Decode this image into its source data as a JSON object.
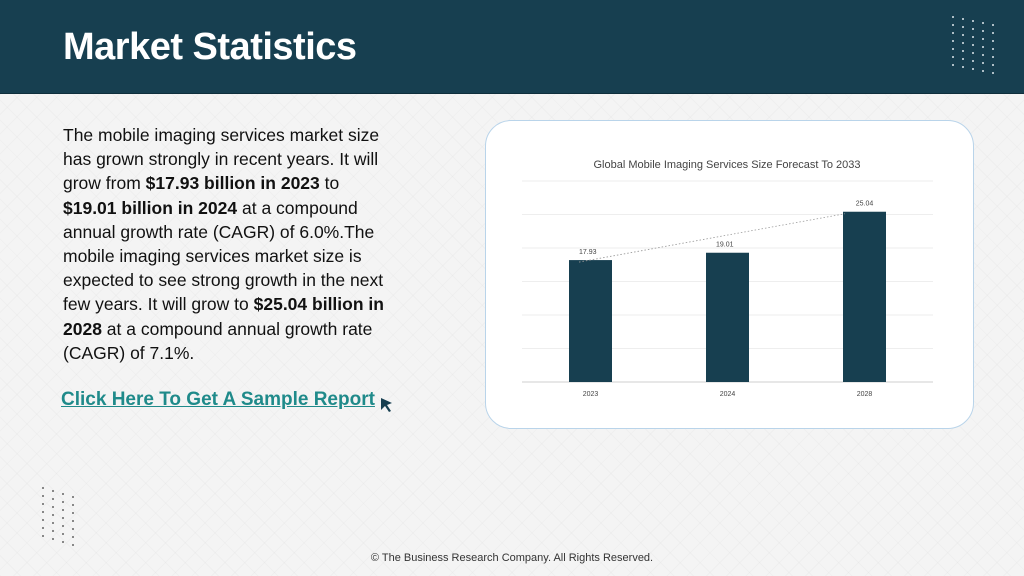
{
  "header": {
    "title": "Market Statistics"
  },
  "body": {
    "p1": "The mobile imaging services market size has grown strongly in recent years. It will grow from ",
    "b1": "$17.93 billion in 2023",
    "p2": " to ",
    "b2": "$19.01 billion in 2024",
    "p3": " at a compound annual growth rate (CAGR) of 6.0%.The mobile imaging services market size is expected to see strong growth in the next few years. It will grow to ",
    "b3": "$25.04 billion in 2028",
    "p4": " at a compound annual growth rate (CAGR) of 7.1%."
  },
  "cta": {
    "label": "Click Here To Get A Sample Report",
    "icon": "cursor-arrow-icon"
  },
  "footer": {
    "text": "© The Business Research Company. All Rights Reserved."
  },
  "colors": {
    "header_bg": "#173f50",
    "bar": "#173f50",
    "link": "#1f8a8a"
  },
  "chart_data": {
    "type": "bar",
    "title": "Global Mobile Imaging Services Size Forecast To 2033",
    "categories": [
      "2023",
      "2024",
      "2028"
    ],
    "values": [
      17.93,
      19.01,
      25.04
    ],
    "data_labels": [
      "17.93",
      "19.01",
      "25.04"
    ],
    "ylim": [
      0,
      25.04
    ],
    "grid": true,
    "trendline": "dotted",
    "legend": "none"
  }
}
